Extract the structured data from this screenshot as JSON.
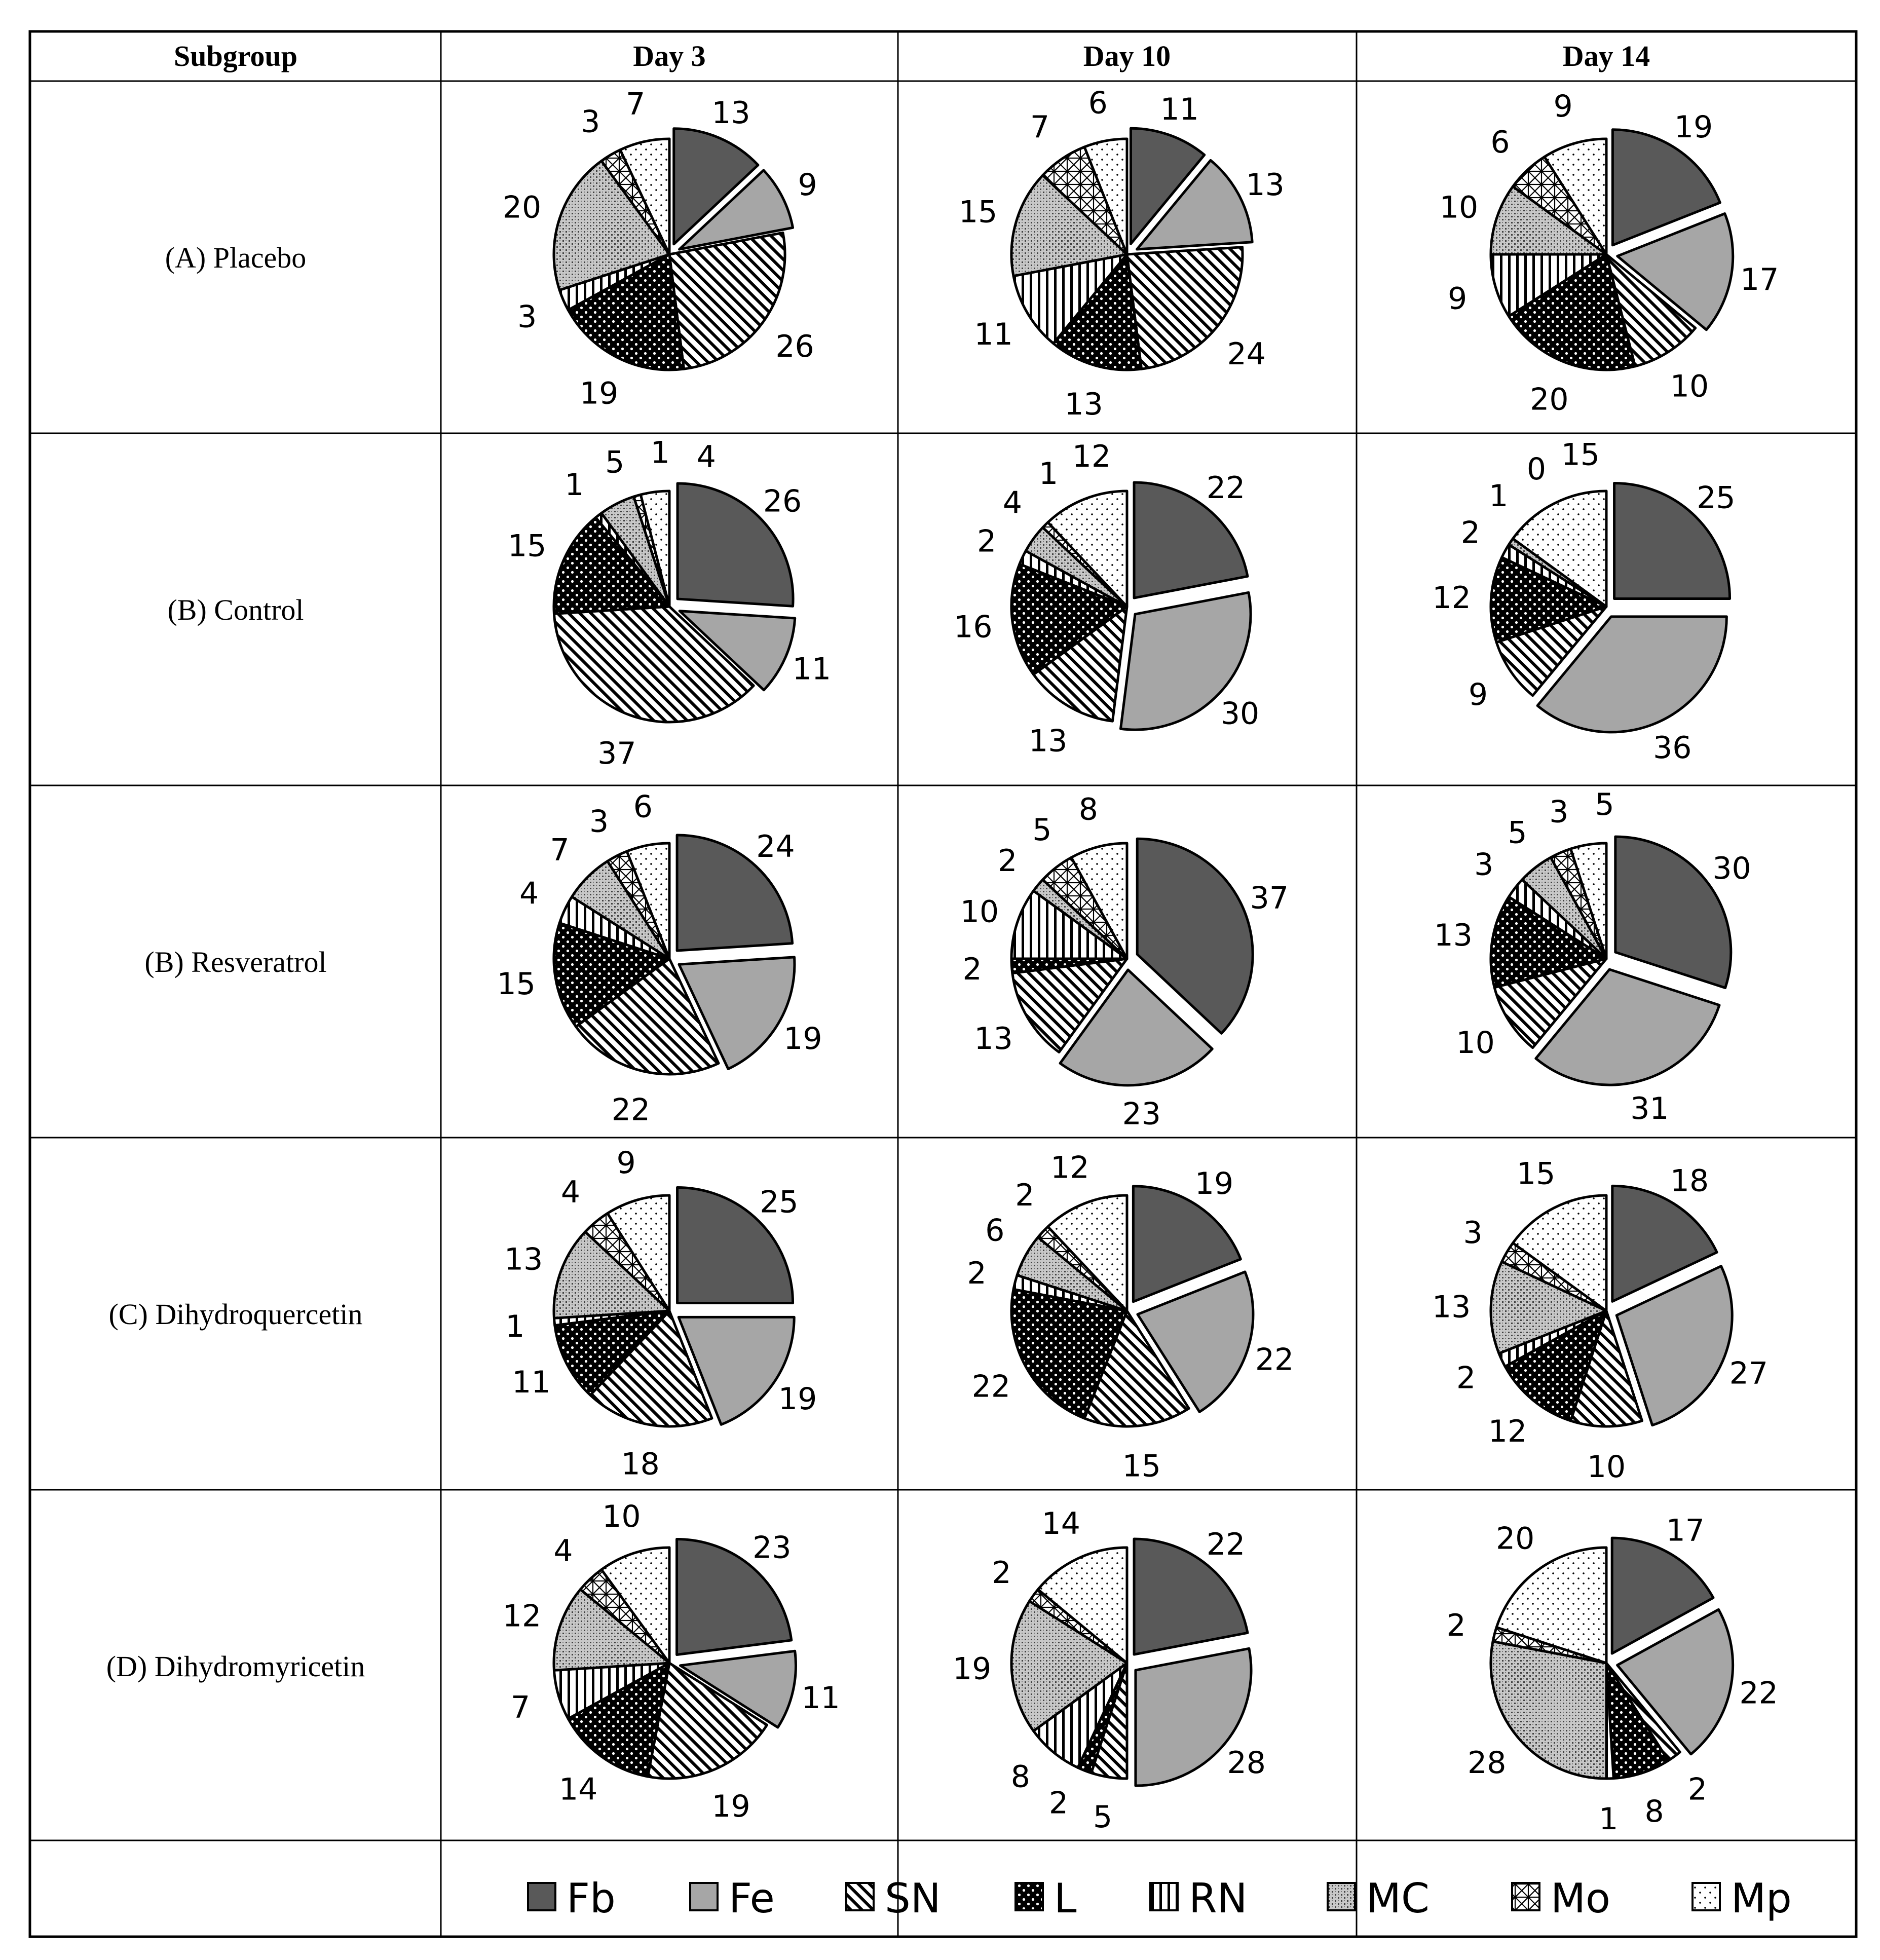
{
  "header": {
    "subgroup_label": "Subgroup",
    "days": [
      "Day 3",
      "Day 10",
      "Day 14"
    ]
  },
  "legend": [
    {
      "code": "Fb",
      "pattern": "fb-solid"
    },
    {
      "code": "Fe",
      "pattern": "fe-gray"
    },
    {
      "code": "SN",
      "pattern": "sn-diagonal"
    },
    {
      "code": "L",
      "pattern": "l-black-dots"
    },
    {
      "code": "RN",
      "pattern": "rn-vertical"
    },
    {
      "code": "MC",
      "pattern": "mc-checker"
    },
    {
      "code": "Mo",
      "pattern": "mo-crosshatch"
    },
    {
      "code": "Mp",
      "pattern": "mp-dots"
    }
  ],
  "colors": {
    "fb": "#595959",
    "fe": "#a6a6a6",
    "ink": "#000000",
    "background": "#ffffff"
  },
  "chart_data": {
    "type": "pie",
    "title": "",
    "categories": [
      "Fb",
      "Fe",
      "SN",
      "L",
      "RN",
      "MC",
      "Mo",
      "Mp"
    ],
    "exploded_categories": [
      "Fb",
      "Fe"
    ],
    "rows": [
      {
        "label": "(A) Placebo",
        "charts": [
          {
            "day": "Day 3",
            "values": [
              13,
              9,
              26,
              19,
              3,
              20,
              3,
              7
            ]
          },
          {
            "day": "Day 10",
            "values": [
              11,
              13,
              24,
              13,
              11,
              15,
              7,
              6
            ]
          },
          {
            "day": "Day 14",
            "values": [
              19,
              17,
              10,
              20,
              9,
              10,
              6,
              9
            ]
          }
        ]
      },
      {
        "label": "(B) Control",
        "charts": [
          {
            "day": "Day 3",
            "values": [
              26,
              11,
              37,
              15,
              1,
              5,
              1,
              4
            ]
          },
          {
            "day": "Day 10",
            "values": [
              22,
              30,
              13,
              16,
              2,
              4,
              1,
              12
            ]
          },
          {
            "day": "Day 14",
            "values": [
              25,
              36,
              9,
              12,
              2,
              1,
              0,
              15
            ]
          }
        ]
      },
      {
        "label": "(B) Resveratrol",
        "charts": [
          {
            "day": "Day 3",
            "values": [
              24,
              19,
              22,
              15,
              4,
              7,
              3,
              6
            ]
          },
          {
            "day": "Day 10",
            "values": [
              37,
              23,
              13,
              2,
              10,
              2,
              5,
              8
            ]
          },
          {
            "day": "Day 14",
            "values": [
              30,
              31,
              10,
              13,
              3,
              5,
              3,
              5
            ]
          }
        ]
      },
      {
        "label": "(C) Dihydroquercetin",
        "charts": [
          {
            "day": "Day 3",
            "values": [
              25,
              19,
              18,
              11,
              1,
              13,
              4,
              9
            ]
          },
          {
            "day": "Day 10",
            "values": [
              19,
              22,
              15,
              22,
              2,
              6,
              2,
              12
            ]
          },
          {
            "day": "Day 14",
            "values": [
              18,
              27,
              10,
              12,
              2,
              13,
              3,
              15
            ]
          }
        ]
      },
      {
        "label": "(D) Dihydromyricetin",
        "charts": [
          {
            "day": "Day 3",
            "values": [
              23,
              11,
              19,
              14,
              7,
              12,
              4,
              10
            ]
          },
          {
            "day": "Day 10",
            "values": [
              22,
              28,
              5,
              2,
              8,
              19,
              2,
              14
            ]
          },
          {
            "day": "Day 14",
            "values": [
              17,
              22,
              2,
              8,
              1,
              28,
              2,
              20
            ]
          }
        ]
      }
    ]
  }
}
